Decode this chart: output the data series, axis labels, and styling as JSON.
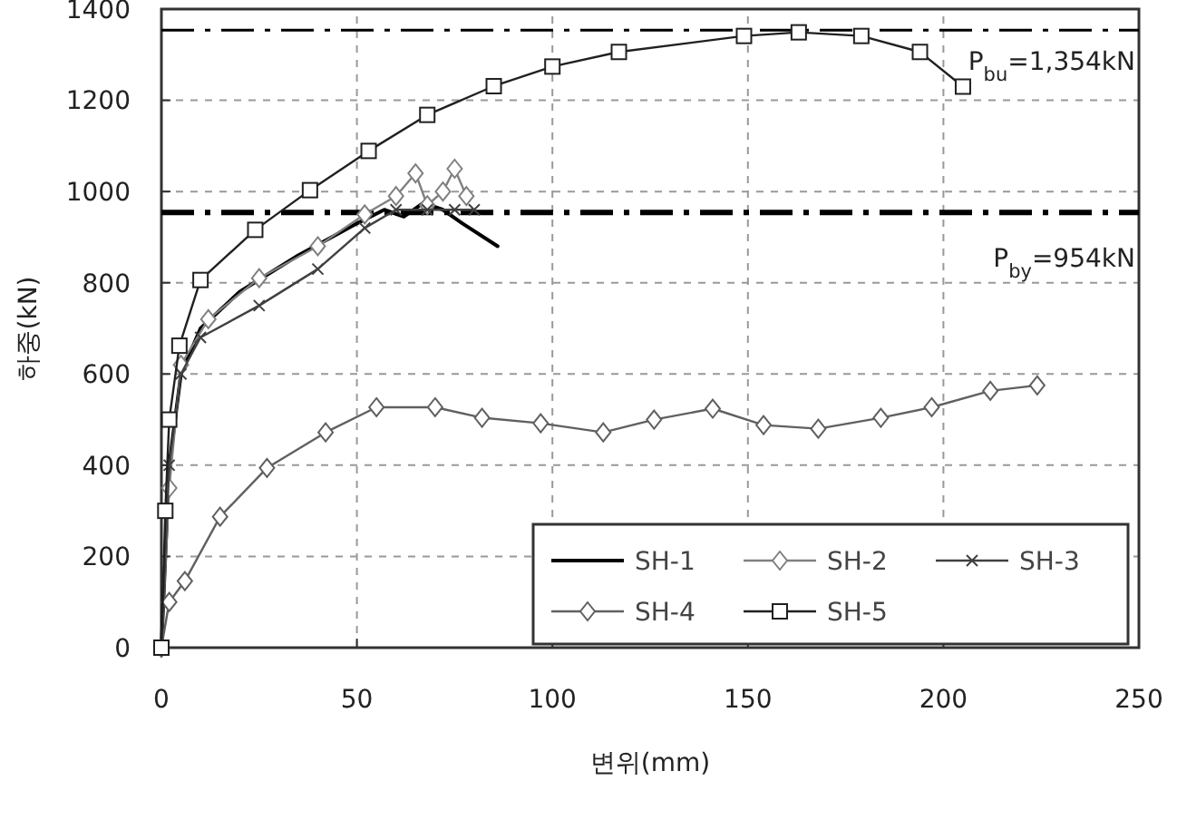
{
  "chart_data": {
    "type": "line",
    "xlabel": "변위(mm)",
    "ylabel": "하중(kN)",
    "xlim": [
      0,
      250
    ],
    "ylim": [
      0,
      1400
    ],
    "xticks": [
      0,
      50,
      100,
      150,
      200,
      250
    ],
    "yticks": [
      0,
      200,
      400,
      600,
      800,
      1000,
      1200,
      1400
    ],
    "grid": true,
    "legend": "bottom right",
    "ref_lines": [
      {
        "axis": "y",
        "value": 1354,
        "label": "P$_{bu}$=1,354kN",
        "color": "#000000"
      },
      {
        "axis": "y",
        "value": 954,
        "label": "P$_{by}$=954kN",
        "color": "#000000"
      }
    ],
    "series": [
      {
        "name": "SH-1",
        "color": "#000000",
        "marker": "none",
        "x": [
          0,
          2,
          5,
          10,
          20,
          35,
          50,
          57,
          62,
          67,
          72,
          77,
          86
        ],
        "values": [
          0,
          400,
          600,
          700,
          780,
          860,
          930,
          960,
          945,
          975,
          960,
          930,
          880
        ]
      },
      {
        "name": "SH-2",
        "color": "#808080",
        "marker": "diamond",
        "x": [
          0,
          2,
          5,
          12,
          25,
          40,
          52,
          60,
          65,
          68,
          72,
          75,
          78
        ],
        "values": [
          0,
          350,
          620,
          720,
          810,
          880,
          950,
          990,
          1040,
          970,
          1000,
          1050,
          990
        ]
      },
      {
        "name": "SH-3",
        "color": "#404040",
        "marker": "cross",
        "x": [
          0,
          2,
          5,
          10,
          25,
          40,
          52,
          60,
          68,
          75,
          80
        ],
        "values": [
          0,
          400,
          600,
          680,
          750,
          830,
          920,
          960,
          960,
          960,
          960
        ]
      },
      {
        "name": "SH-4",
        "color": "#606060",
        "marker": "diamond",
        "x": [
          0,
          2,
          6,
          15,
          27,
          42,
          55,
          70,
          82,
          97,
          113,
          126,
          141,
          154,
          168,
          184,
          197,
          212,
          224
        ],
        "values": [
          0,
          100,
          146,
          287,
          394,
          472,
          527,
          527,
          504,
          492,
          472,
          500,
          524,
          488,
          480,
          504,
          527,
          563,
          575
        ]
      },
      {
        "name": "SH-5",
        "color": "#202020",
        "marker": "square",
        "x": [
          0,
          1,
          2,
          4.6,
          10,
          24,
          38,
          53,
          68,
          85,
          100,
          117,
          149,
          163,
          179,
          194,
          205
        ],
        "values": [
          0,
          300,
          500,
          662,
          806,
          916,
          1003,
          1089,
          1168,
          1231,
          1274,
          1306,
          1341,
          1349,
          1341,
          1306,
          1230
        ]
      }
    ]
  }
}
